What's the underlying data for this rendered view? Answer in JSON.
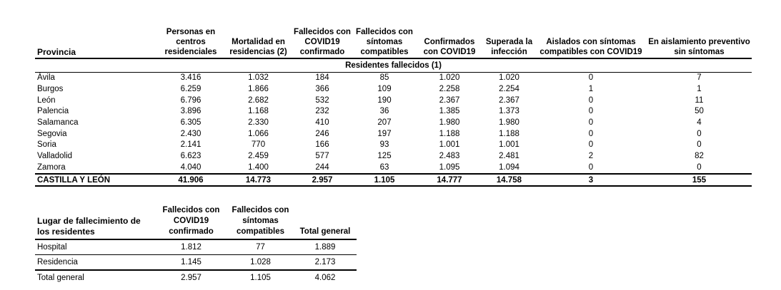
{
  "table1": {
    "headers": {
      "provincia": "Provincia",
      "personas": "Personas en centros residenciales",
      "mortalidad": "Mortalidad en residencias (2)",
      "fallecidos_confirmado": "Fallecidos con COVID19 confirmado",
      "fallecidos_compatibles": "Fallecidos con síntomas compatibles",
      "confirmados": "Confirmados con COVID19",
      "superada": "Superada la infección",
      "aislados": "Aislados con síntomas compatibles con COVID19",
      "aislamiento": "En aislamiento preventivo sin síntomas"
    },
    "subheader": "Residentes fallecidos (1)",
    "rows": [
      {
        "provincia": "Ávila",
        "personas": "3.416",
        "mortalidad": "1.032",
        "fallecidos_confirmado": "184",
        "fallecidos_compatibles": "85",
        "confirmados": "1.020",
        "superada": "1.020",
        "aislados": "0",
        "aislamiento": "7"
      },
      {
        "provincia": "Burgos",
        "personas": "6.259",
        "mortalidad": "1.866",
        "fallecidos_confirmado": "366",
        "fallecidos_compatibles": "109",
        "confirmados": "2.258",
        "superada": "2.254",
        "aislados": "1",
        "aislamiento": "1"
      },
      {
        "provincia": "León",
        "personas": "6.796",
        "mortalidad": "2.682",
        "fallecidos_confirmado": "532",
        "fallecidos_compatibles": "190",
        "confirmados": "2.367",
        "superada": "2.367",
        "aislados": "0",
        "aislamiento": "11"
      },
      {
        "provincia": "Palencia",
        "personas": "3.896",
        "mortalidad": "1.168",
        "fallecidos_confirmado": "232",
        "fallecidos_compatibles": "36",
        "confirmados": "1.385",
        "superada": "1.373",
        "aislados": "0",
        "aislamiento": "50"
      },
      {
        "provincia": "Salamanca",
        "personas": "6.305",
        "mortalidad": "2.330",
        "fallecidos_confirmado": "410",
        "fallecidos_compatibles": "207",
        "confirmados": "1.980",
        "superada": "1.980",
        "aislados": "0",
        "aislamiento": "4"
      },
      {
        "provincia": "Segovia",
        "personas": "2.430",
        "mortalidad": "1.066",
        "fallecidos_confirmado": "246",
        "fallecidos_compatibles": "197",
        "confirmados": "1.188",
        "superada": "1.188",
        "aislados": "0",
        "aislamiento": "0"
      },
      {
        "provincia": "Soria",
        "personas": "2.141",
        "mortalidad": "770",
        "fallecidos_confirmado": "166",
        "fallecidos_compatibles": "93",
        "confirmados": "1.001",
        "superada": "1.001",
        "aislados": "0",
        "aislamiento": "0"
      },
      {
        "provincia": "Valladolid",
        "personas": "6.623",
        "mortalidad": "2.459",
        "fallecidos_confirmado": "577",
        "fallecidos_compatibles": "125",
        "confirmados": "2.483",
        "superada": "2.481",
        "aislados": "2",
        "aislamiento": "82"
      },
      {
        "provincia": "Zamora",
        "personas": "4.040",
        "mortalidad": "1.400",
        "fallecidos_confirmado": "244",
        "fallecidos_compatibles": "63",
        "confirmados": "1.095",
        "superada": "1.094",
        "aislados": "0",
        "aislamiento": "0"
      }
    ],
    "total": {
      "provincia": "CASTILLA Y LEÓN",
      "personas": "41.906",
      "mortalidad": "14.773",
      "fallecidos_confirmado": "2.957",
      "fallecidos_compatibles": "1.105",
      "confirmados": "14.777",
      "superada": "14.758",
      "aislados": "3",
      "aislamiento": "155"
    }
  },
  "table2": {
    "headers": {
      "lugar": "Lugar de fallecimiento de los residentes",
      "confirmado": "Fallecidos con COVID19 confirmado",
      "compatibles": "Fallecidos con síntomas compatibles",
      "total": "Total general"
    },
    "rows": [
      {
        "lugar": "Hospital",
        "confirmado": "1.812",
        "compatibles": "77",
        "total": "1.889"
      },
      {
        "lugar": "Residencia",
        "confirmado": "1.145",
        "compatibles": "1.028",
        "total": "2.173"
      }
    ],
    "total": {
      "lugar": "Total general",
      "confirmado": "2.957",
      "compatibles": "1.105",
      "total": "4.062"
    }
  }
}
